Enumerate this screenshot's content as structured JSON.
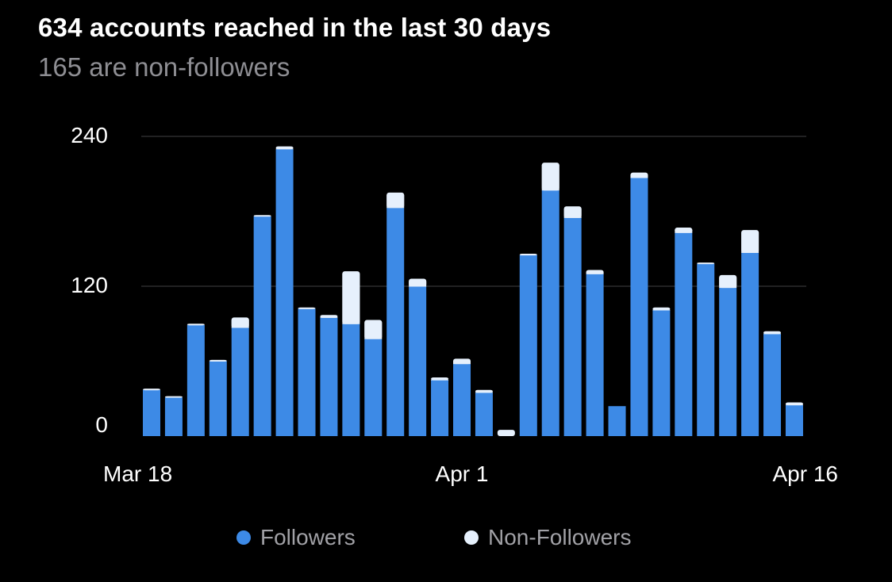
{
  "header": {
    "title": "634 accounts reached in the last 30 days",
    "subtitle": "165 are non-followers"
  },
  "colors": {
    "followers": "#3d8ae6",
    "non_followers": "#e6f0fc",
    "background": "#000000",
    "grid": "#2c2c2e",
    "tick_text": "#ffffff"
  },
  "chart_data": {
    "type": "bar",
    "stacked": true,
    "title": "634 accounts reached in the last 30 days",
    "subtitle": "165 are non-followers",
    "ylim": [
      0,
      240
    ],
    "y_ticks": [
      0,
      120,
      240
    ],
    "x_tick_labels": [
      "Mar 18",
      "Apr 1",
      "Apr 16"
    ],
    "grid": true,
    "legend_position": "bottom",
    "categories": [
      "Mar 18",
      "Mar 19",
      "Mar 20",
      "Mar 21",
      "Mar 22",
      "Mar 23",
      "Mar 24",
      "Mar 25",
      "Mar 26",
      "Mar 27",
      "Mar 28",
      "Mar 29",
      "Mar 30",
      "Mar 31",
      "Apr 1",
      "Apr 2",
      "Apr 3",
      "Apr 4",
      "Apr 5",
      "Apr 6",
      "Apr 7",
      "Apr 8",
      "Apr 9",
      "Apr 10",
      "Apr 11",
      "Apr 12",
      "Apr 13",
      "Apr 14",
      "Apr 15",
      "Apr 16"
    ],
    "series": [
      {
        "name": "Followers",
        "values": [
          37,
          31,
          89,
          60,
          87,
          176,
          230,
          102,
          95,
          90,
          78,
          183,
          120,
          45,
          58,
          35,
          0,
          145,
          197,
          175,
          130,
          24,
          207,
          101,
          163,
          138,
          119,
          147,
          82,
          25
        ]
      },
      {
        "name": "Non-Followers",
        "values": [
          1,
          1,
          1,
          1,
          8,
          1,
          2,
          1,
          2,
          42,
          15,
          12,
          6,
          2,
          4,
          2,
          5,
          1,
          22,
          9,
          3,
          0,
          4,
          2,
          4,
          1,
          10,
          18,
          2,
          2
        ]
      }
    ]
  }
}
